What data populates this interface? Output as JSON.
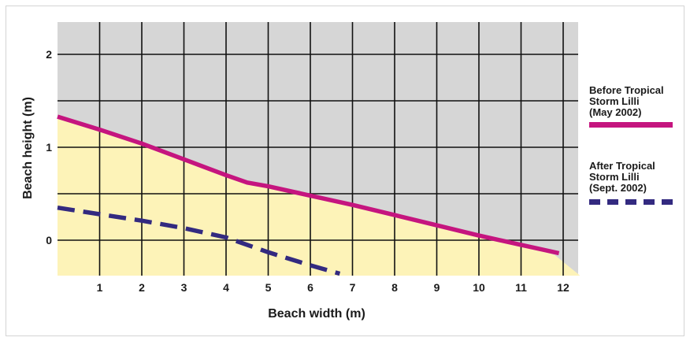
{
  "chart_data": {
    "type": "line",
    "xlabel": "Beach width (m)",
    "ylabel": "Beach height (m)",
    "xlim": [
      0,
      12.4
    ],
    "ylim": [
      -0.38,
      2.3
    ],
    "x_ticks": [
      1,
      2,
      3,
      4,
      5,
      6,
      7,
      8,
      9,
      10,
      11,
      12
    ],
    "y_ticks": [
      0,
      1,
      2
    ],
    "grid": true,
    "legend_position": "right",
    "background_color": "#d6d6d6",
    "sand_color": "#fdf3b8",
    "series": [
      {
        "name": "Before Tropical Storm Lilli (May 2002)",
        "name_lines": [
          "Before Tropical",
          "Storm  Lilli",
          "(May 2002)"
        ],
        "color": "#c5157f",
        "style": "solid",
        "points": [
          [
            0,
            1.33
          ],
          [
            1,
            1.19
          ],
          [
            2,
            1.04
          ],
          [
            3,
            0.87
          ],
          [
            4,
            0.7
          ],
          [
            4.5,
            0.62
          ],
          [
            5,
            0.58
          ],
          [
            6,
            0.48
          ],
          [
            7,
            0.38
          ],
          [
            8,
            0.27
          ],
          [
            9,
            0.16
          ],
          [
            10,
            0.05
          ],
          [
            11,
            -0.05
          ],
          [
            11.9,
            -0.14
          ]
        ]
      },
      {
        "name": "After Tropical Storm Lilli (Sept. 2002)",
        "name_lines": [
          "After Tropical",
          "Storm  Lilli",
          "(Sept. 2002)"
        ],
        "color": "#332a80",
        "style": "dashed",
        "points": [
          [
            0,
            0.35
          ],
          [
            1,
            0.28
          ],
          [
            2,
            0.21
          ],
          [
            3,
            0.13
          ],
          [
            4,
            0.03
          ],
          [
            5,
            -0.13
          ],
          [
            6,
            -0.27
          ],
          [
            6.7,
            -0.36
          ]
        ]
      }
    ],
    "sand_boundary": [
      [
        0,
        1.33
      ],
      [
        1,
        1.19
      ],
      [
        2,
        1.04
      ],
      [
        3,
        0.87
      ],
      [
        4,
        0.7
      ],
      [
        4.5,
        0.62
      ],
      [
        5,
        0.58
      ],
      [
        6,
        0.48
      ],
      [
        7,
        0.38
      ],
      [
        8,
        0.27
      ],
      [
        9,
        0.16
      ],
      [
        10,
        0.05
      ],
      [
        11,
        -0.05
      ],
      [
        11.8,
        -0.16
      ],
      [
        12.4,
        -0.38
      ]
    ]
  }
}
